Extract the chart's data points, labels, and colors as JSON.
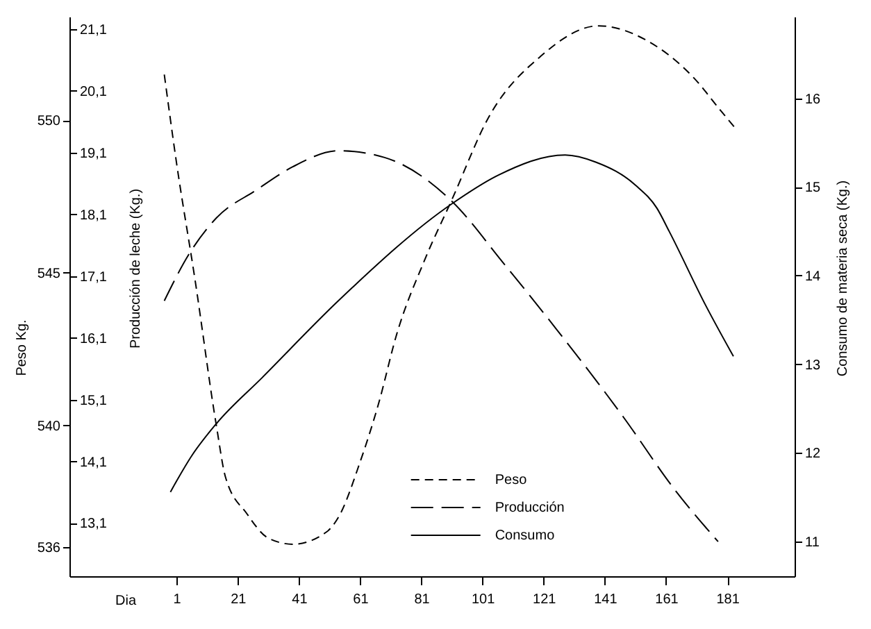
{
  "chart_data": {
    "type": "line",
    "xlabel": "Dia",
    "ylabel": "Peso Kg.",
    "y2label": "Producción de leche (Kg.)",
    "y3label": "Consumo de materia seca (Kg.)",
    "xlim": [
      -34,
      203
    ],
    "xticks": [
      1,
      21,
      41,
      61,
      81,
      101,
      121,
      141,
      161,
      181
    ],
    "ylim": [
      535.05,
      553.4
    ],
    "yticks": [
      536,
      540,
      545,
      550
    ],
    "y2lim": [
      12.24,
      21.3
    ],
    "y2ticks": [
      {
        "value": 13.1,
        "label": "13,1"
      },
      {
        "value": 14.1,
        "label": "14,1"
      },
      {
        "value": 15.1,
        "label": "15,1"
      },
      {
        "value": 16.1,
        "label": "16,1"
      },
      {
        "value": 17.1,
        "label": "17,1"
      },
      {
        "value": 18.1,
        "label": "18,1"
      },
      {
        "value": 19.1,
        "label": "19,1"
      },
      {
        "value": 20.1,
        "label": "20,1"
      },
      {
        "value": 21.1,
        "label": "21,1"
      }
    ],
    "y3lim": [
      10.61,
      16.92
    ],
    "y3ticks": [
      11,
      12,
      13,
      14,
      15,
      16
    ],
    "legend": "bottom",
    "series": [
      {
        "name": "Peso",
        "color": "#000000",
        "line_style": "dashed",
        "x": [
          -3,
          1,
          7,
          14,
          17,
          24,
          31,
          39,
          50,
          54,
          61,
          67,
          73,
          82,
          91,
          103,
          120,
          139,
          155,
          170,
          179,
          184
        ],
        "values": [
          551.5,
          548.6,
          544.8,
          540.0,
          538.3,
          537.1,
          536.3,
          536.1,
          536.5,
          537.0,
          538.8,
          540.7,
          543.0,
          545.4,
          547.4,
          550.1,
          552.1,
          553.1,
          552.6,
          551.4,
          550.3,
          549.7
        ]
      },
      {
        "name": "Producción",
        "color": "#000000",
        "line_style": "dashed",
        "axis": "y2",
        "x": [
          -3,
          5,
          14,
          27,
          39,
          54,
          69,
          91,
          108,
          125,
          147,
          164,
          178
        ],
        "values": [
          16.7,
          17.45,
          18.04,
          18.49,
          18.87,
          19.13,
          19.02,
          18.31,
          17.3,
          16.25,
          14.82,
          13.63,
          12.8
        ]
      },
      {
        "name": "Consumo",
        "color": "#000000",
        "line_style": "solid",
        "axis": "y3",
        "x": [
          -1,
          6,
          14,
          29,
          54,
          91,
          106,
          128,
          138,
          151,
          158,
          162,
          174,
          183
        ],
        "values": [
          11.56,
          11.97,
          12.33,
          12.85,
          13.72,
          14.81,
          15.13,
          15.36,
          15.28,
          15.02,
          14.76,
          14.5,
          13.66,
          13.09
        ]
      }
    ]
  }
}
